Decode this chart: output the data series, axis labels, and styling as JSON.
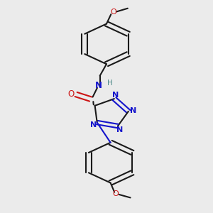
{
  "bg_color": "#ebebeb",
  "bond_color": "#1a1a1a",
  "N_color": "#1414cc",
  "O_color": "#cc1414",
  "H_color": "#4a8888",
  "bond_width": 1.5,
  "dbo": 0.013,
  "figsize": [
    3.0,
    3.0
  ],
  "dpi": 100,
  "xlim": [
    0.1,
    0.9
  ],
  "ylim": [
    0.02,
    1.02
  ]
}
